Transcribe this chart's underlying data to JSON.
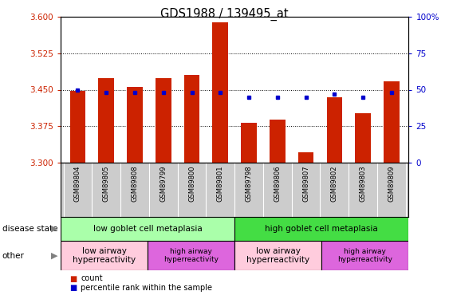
{
  "title": "GDS1988 / 139495_at",
  "samples": [
    "GSM89804",
    "GSM89805",
    "GSM89808",
    "GSM89799",
    "GSM89800",
    "GSM89801",
    "GSM89798",
    "GSM89806",
    "GSM89807",
    "GSM89802",
    "GSM89803",
    "GSM89809"
  ],
  "red_values": [
    3.448,
    3.473,
    3.455,
    3.473,
    3.48,
    3.588,
    3.383,
    3.388,
    3.322,
    3.435,
    3.402,
    3.467
  ],
  "blue_pct": [
    50,
    48,
    48,
    48,
    48,
    48,
    45,
    45,
    45,
    47,
    45,
    48
  ],
  "ylim": [
    3.3,
    3.6
  ],
  "y_ticks": [
    3.3,
    3.375,
    3.45,
    3.525,
    3.6
  ],
  "right_ticks": [
    0,
    25,
    50,
    75,
    100
  ],
  "right_tick_labels": [
    "0",
    "25",
    "50",
    "75",
    "100%"
  ],
  "disease_state_groups": [
    {
      "label": "low goblet cell metaplasia",
      "start": 0,
      "end": 6,
      "color": "#AAFFAA"
    },
    {
      "label": "high goblet cell metaplasia",
      "start": 6,
      "end": 12,
      "color": "#44DD44"
    }
  ],
  "other_groups": [
    {
      "label": "low airway\nhyperreactivity",
      "start": 0,
      "end": 3,
      "color": "#FFCCDD"
    },
    {
      "label": "high airway\nhyperreactivity",
      "start": 3,
      "end": 6,
      "color": "#DD66DD"
    },
    {
      "label": "low airway\nhyperreactivity",
      "start": 6,
      "end": 9,
      "color": "#FFCCDD"
    },
    {
      "label": "high airway\nhyperreactivity",
      "start": 9,
      "end": 12,
      "color": "#DD66DD"
    }
  ],
  "red_color": "#CC2200",
  "blue_color": "#0000CC",
  "bar_width": 0.55,
  "baseline": 3.3,
  "tick_color_left": "#CC2200",
  "tick_color_right": "#0000CC"
}
